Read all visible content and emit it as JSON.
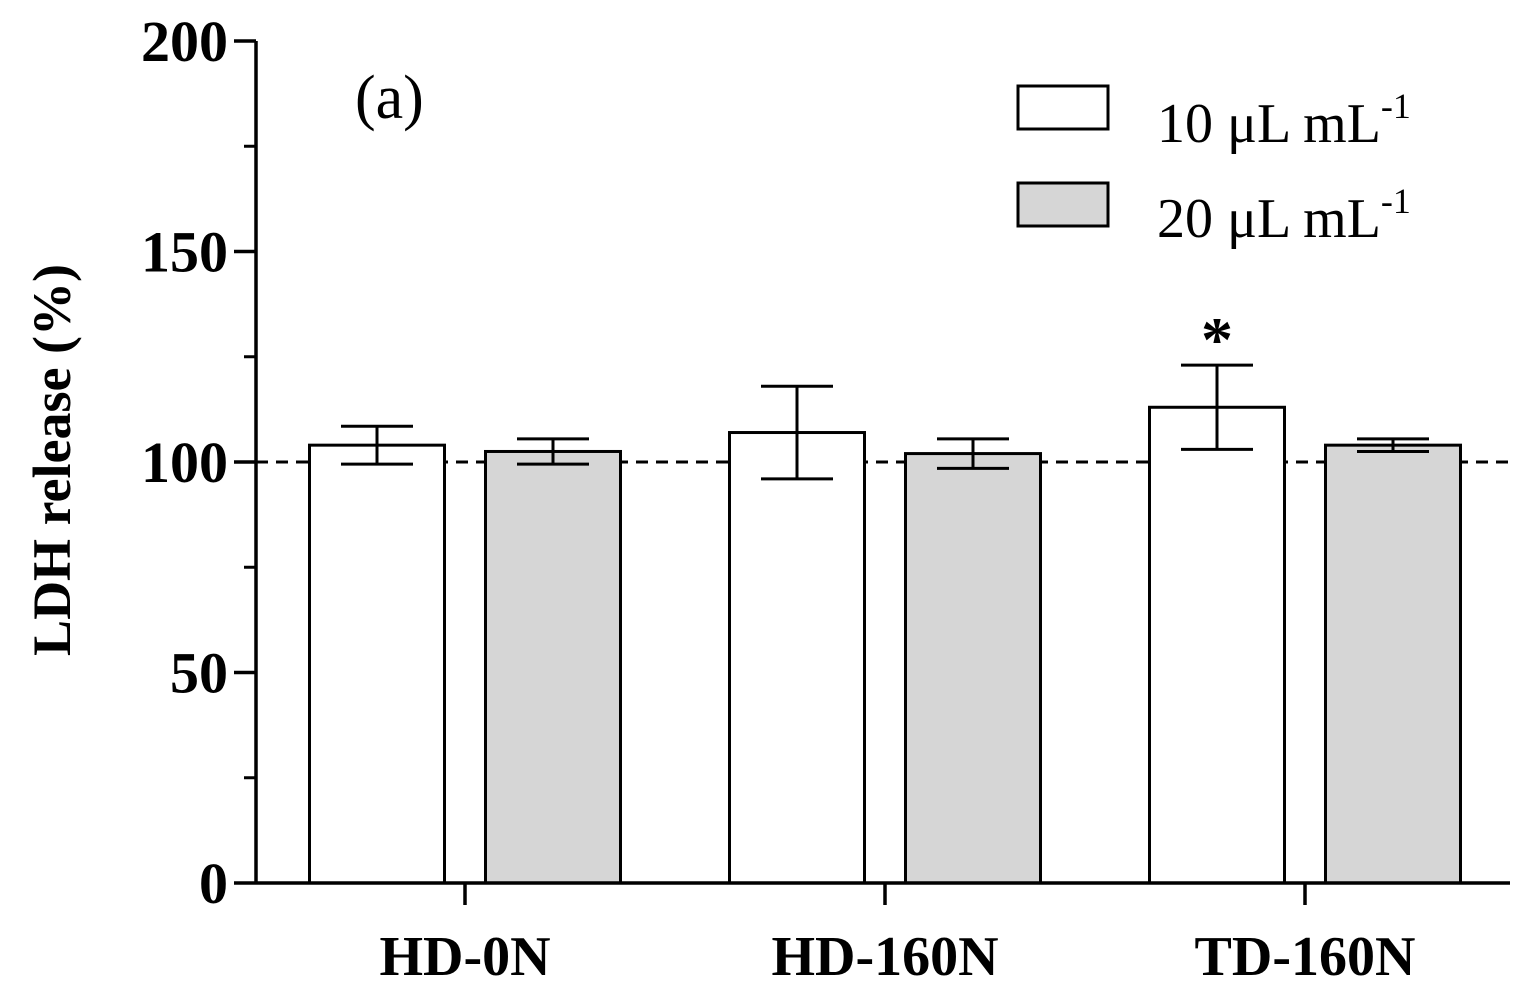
{
  "chart_data": {
    "type": "bar",
    "title": "",
    "panel_label": "(a)",
    "ylabel": "LDH release (%)",
    "xlabel": "",
    "ylim": [
      0,
      200
    ],
    "yticks": [
      "0",
      "50",
      "100",
      "150",
      "200"
    ],
    "categories": [
      "HD-0N",
      "HD-160N",
      "TD-160N"
    ],
    "reference_line": 100,
    "legend_position": "top-right",
    "series": [
      {
        "name": "10 μL mL",
        "name_superscript": "-1",
        "color": "#ffffff",
        "values": [
          104,
          107,
          113
        ],
        "errors": [
          4.5,
          11,
          10
        ]
      },
      {
        "name": "20 μL mL",
        "name_superscript": "-1",
        "color": "#d6d6d6",
        "values": [
          102.5,
          102,
          104
        ],
        "errors": [
          3,
          3.5,
          1.5
        ]
      }
    ],
    "annotations": [
      {
        "category": "TD-160N",
        "series": 0,
        "text": "*"
      }
    ]
  }
}
